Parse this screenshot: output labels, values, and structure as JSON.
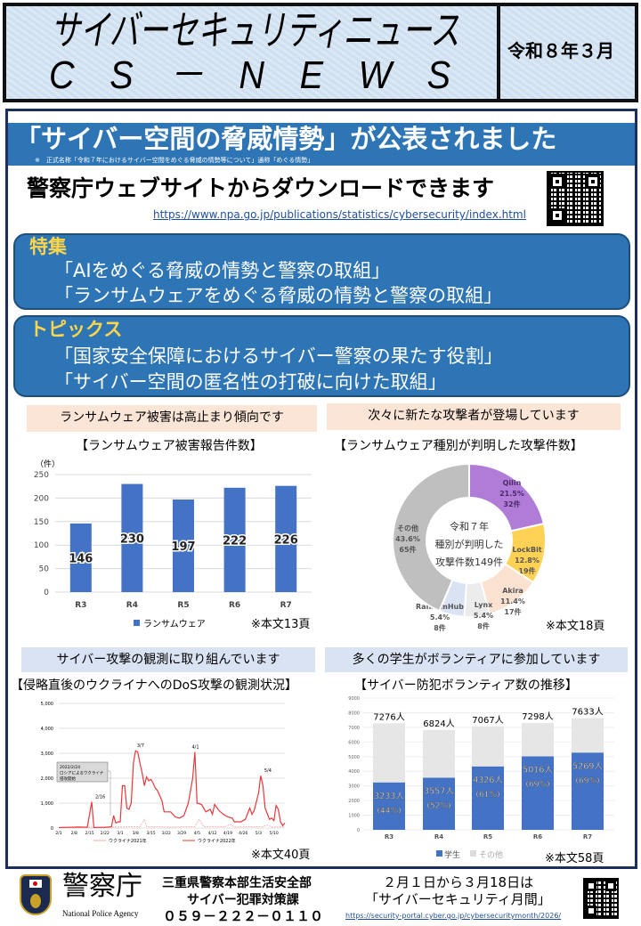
{
  "header": {
    "title_jp": "サイバーセキュリティニュース",
    "title_en": "C　S　－　N　E　W　S",
    "date": "令和８年３月"
  },
  "banner": {
    "title": "「サイバー空間の脅威情勢」が公表されました",
    "note": "※　正式名称「令和７年におけるサイバー空間をめぐる脅威の情勢等について」通称「めぐる情勢」"
  },
  "download": {
    "text": "警察庁ウェブサイトからダウンロードできます",
    "url": "https://www.npa.go.jp/publications/statistics/cybersecurity/index.html"
  },
  "feature": {
    "label": "特集",
    "items": [
      "「AIをめぐる脅威の情勢と警察の取組」",
      "「ランサムウェアをめぐる脅威の情勢と警察の取組」"
    ]
  },
  "topics": {
    "label": "トピックス",
    "items": [
      "「国家安全保障におけるサイバー警察の果たす役割」",
      "「サイバー空間の匿名性の打破に向けた取組」"
    ]
  },
  "sections": [
    {
      "heading": "ランサムウェア被害は高止まり傾向です",
      "page_ref": "※本文13頁"
    },
    {
      "heading": "次々に新たな攻撃者が登場しています",
      "page_ref": "※本文18頁"
    },
    {
      "heading": "サイバー攻撃の観測に取り組んでいます",
      "page_ref": "※本文40頁"
    },
    {
      "heading": "多くの学生がボランティアに参加しています",
      "page_ref": "※本文58頁"
    }
  ],
  "chart_data": [
    {
      "type": "bar",
      "title": "【ランサムウェア被害報告件数】",
      "ylabel": "（件）",
      "categories": [
        "R3",
        "R4",
        "R5",
        "R6",
        "R7"
      ],
      "series": [
        {
          "name": "ランサムウェア",
          "values": [
            146,
            230,
            197,
            222,
            226
          ]
        }
      ],
      "ylim": [
        0,
        250
      ],
      "yticks": [
        0,
        50,
        100,
        150,
        200,
        250
      ],
      "grid": true,
      "legend": "bottom",
      "color": "#4472c4"
    },
    {
      "type": "pie",
      "title": "【ランサムウェア種別が判明した攻撃件数】",
      "center_text": [
        "令和７年",
        "種別が判明した",
        "攻撃件数149件"
      ],
      "slices": [
        {
          "name": "Qilin",
          "percent": "21.5%",
          "count": "32件",
          "value": 32,
          "color": "#b07cd8"
        },
        {
          "name": "LockBit",
          "percent": "12.8%",
          "count": "19件",
          "value": 19,
          "color": "#ffd154"
        },
        {
          "name": "Akira",
          "percent": "11.4%",
          "count": "17件",
          "value": 17,
          "color": "#fbe2d0"
        },
        {
          "name": "Lynx",
          "percent": "5.4%",
          "count": "8件",
          "value": 8,
          "color": "#ececec"
        },
        {
          "name": "RansomHub",
          "percent": "5.4%",
          "count": "8件",
          "value": 8,
          "color": "#dae3f3"
        },
        {
          "name": "その他",
          "percent": "43.6%",
          "count": "65件",
          "value": 65,
          "color": "#bfbfbf"
        }
      ]
    },
    {
      "type": "line",
      "title": "【侵略直後のウクライナへのDoS攻撃の観測状況】",
      "ylim": [
        0,
        5000
      ],
      "yticks": [
        "0",
        "1,000",
        "2,000",
        "3,000",
        "4,000",
        "5,000"
      ],
      "xticks": [
        "2/1",
        "2/8",
        "2/15",
        "2/22",
        "3/1",
        "3/8",
        "3/15",
        "3/22",
        "3/29",
        "4/5",
        "4/12",
        "4/19",
        "4/26",
        "5/3",
        "5/10"
      ],
      "annotations": [
        "2/16",
        "3/7",
        "4/1",
        "5/4"
      ],
      "callout": [
        "2022/2/24",
        "ロシアによるウクライナ",
        "侵攻開始"
      ],
      "grid": true,
      "legend": "bottom",
      "series": [
        {
          "name": "ウクライナ2021年",
          "color": "#f4a6a6",
          "points": [
            [
              "2/1",
              20
            ],
            [
              "2/15",
              30
            ],
            [
              "3/1",
              40
            ],
            [
              "3/10",
              60
            ],
            [
              "3/12",
              350
            ],
            [
              "3/13",
              60
            ],
            [
              "3/25",
              40
            ],
            [
              "4/4",
              60
            ],
            [
              "4/6",
              350
            ],
            [
              "4/8",
              60
            ],
            [
              "4/18",
              60
            ],
            [
              "4/20",
              160
            ],
            [
              "4/22",
              40
            ],
            [
              "5/5",
              60
            ],
            [
              "5/7",
              120
            ],
            [
              "5/9",
              40
            ],
            [
              "5/15",
              50
            ]
          ]
        },
        {
          "name": "ウクライナ2022年",
          "color": "#e8383d",
          "points": [
            [
              "2/1",
              20
            ],
            [
              "2/10",
              40
            ],
            [
              "2/14",
              30
            ],
            [
              "2/16",
              1050
            ],
            [
              "2/17",
              20
            ],
            [
              "2/22",
              30
            ],
            [
              "2/25",
              50
            ],
            [
              "2/26",
              500
            ],
            [
              "2/27",
              200
            ],
            [
              "2/28",
              250
            ],
            [
              "3/1",
              250
            ],
            [
              "3/2",
              1700
            ],
            [
              "3/3",
              1700
            ],
            [
              "3/4",
              800
            ],
            [
              "3/5",
              750
            ],
            [
              "3/6",
              1000
            ],
            [
              "3/7",
              2600
            ],
            [
              "3/8",
              3100
            ],
            [
              "3/9",
              3050
            ],
            [
              "3/10",
              2600
            ],
            [
              "3/11",
              2200
            ],
            [
              "3/12",
              1700
            ],
            [
              "3/13",
              2050
            ],
            [
              "3/14",
              1900
            ],
            [
              "3/15",
              1950
            ],
            [
              "3/16",
              1800
            ],
            [
              "3/17",
              1600
            ],
            [
              "3/18",
              1500
            ],
            [
              "3/20",
              1100
            ],
            [
              "3/21",
              650
            ],
            [
              "3/24",
              650
            ],
            [
              "3/26",
              450
            ],
            [
              "3/28",
              400
            ],
            [
              "3/30",
              500
            ],
            [
              "4/1",
              1000
            ],
            [
              "4/3",
              2000
            ],
            [
              "4/4",
              3050
            ],
            [
              "4/5",
              1000
            ],
            [
              "4/7",
              950
            ],
            [
              "4/9",
              650
            ],
            [
              "4/11",
              750
            ],
            [
              "4/12",
              550
            ],
            [
              "4/13",
              950
            ],
            [
              "4/15",
              700
            ],
            [
              "4/17",
              550
            ],
            [
              "4/19",
              450
            ],
            [
              "4/21",
              400
            ],
            [
              "4/22",
              250
            ],
            [
              "4/25",
              250
            ],
            [
              "4/27",
              350
            ],
            [
              "4/29",
              800
            ],
            [
              "4/30",
              550
            ],
            [
              "5/1",
              700
            ],
            [
              "5/3",
              1400
            ],
            [
              "5/4",
              2100
            ],
            [
              "5/5",
              1700
            ],
            [
              "5/6",
              800
            ],
            [
              "5/8",
              350
            ],
            [
              "5/9",
              400
            ],
            [
              "5/10",
              300
            ],
            [
              "5/11",
              900
            ],
            [
              "5/12",
              750
            ],
            [
              "5/13",
              250
            ],
            [
              "5/14",
              100
            ],
            [
              "5/15",
              200
            ]
          ]
        }
      ]
    },
    {
      "type": "bar",
      "stacked": true,
      "title": "【サイバー防犯ボランティア数の推移】",
      "categories": [
        "R3",
        "R4",
        "R5",
        "R6",
        "R7"
      ],
      "ylim": [
        0,
        9000
      ],
      "yticks": [
        0,
        1000,
        2000,
        3000,
        4000,
        5000,
        6000,
        7000,
        8000,
        9000
      ],
      "grid": true,
      "legend": "bottom",
      "totals": [
        7276,
        6824,
        7067,
        7298,
        7633
      ],
      "total_labels": [
        "7276人",
        "6824人",
        "7067人",
        "7298人",
        "7633人"
      ],
      "series": [
        {
          "name": "学生",
          "color": "#4472c4",
          "values": [
            3233,
            3557,
            4326,
            5016,
            5269
          ],
          "labels": [
            "3233人",
            "3557人",
            "4326人",
            "5016人",
            "5269人"
          ],
          "percent_labels": [
            "(44%)",
            "(52%)",
            "(61%)",
            "(69%)",
            "(69%)"
          ]
        },
        {
          "name": "その他",
          "color": "#e7e6e6",
          "values": [
            4043,
            3267,
            2741,
            2282,
            2364
          ]
        }
      ]
    }
  ],
  "footer": {
    "agency_jp": "警察庁",
    "agency_en": "National Police Agency",
    "dept": "三重県警察本部生活安全部",
    "section": "サイバー犯罪対策課",
    "phone": "０５９－２２２－０１１０",
    "month_period": "２月１日から３月18日は",
    "month_name": "「サイバーセキュリティ月間」",
    "month_url": "https://security-portal.cyber.go.jp/cybersecuritymonth/2026/"
  }
}
